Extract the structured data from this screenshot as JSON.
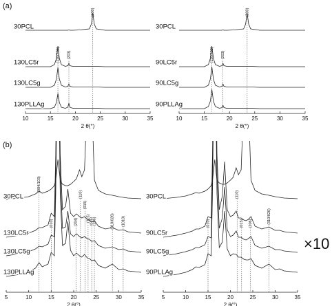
{
  "panel_labels": [
    "(a)",
    "(b)"
  ],
  "magnification": "×10",
  "chart_data": [
    {
      "type": "line",
      "xlabel": "2 θ(°)",
      "xlim": [
        10,
        35
      ],
      "xticks": [
        10,
        15,
        20,
        25,
        30,
        35
      ],
      "x": [
        10,
        13,
        15,
        15.8,
        16.2,
        16.5,
        16.8,
        17.2,
        18,
        18.5,
        18.7,
        18.9,
        19.5,
        21,
        22.8,
        23.2,
        23.5,
        23.8,
        24.2,
        26,
        30,
        35
      ],
      "series": [
        {
          "name": "30PCL",
          "color": "#222222",
          "values": [
            1,
            1,
            1,
            1,
            1,
            1,
            1,
            1,
            1,
            1,
            1.5,
            1,
            1,
            1.5,
            3,
            10,
            26,
            10,
            3,
            1,
            1,
            1
          ]
        },
        {
          "name": "130LC5r",
          "color": "#222222",
          "values": [
            0,
            0,
            0,
            3,
            12,
            30,
            12,
            3,
            0.5,
            1.5,
            5,
            1.5,
            0.5,
            0.5,
            0.5,
            0.5,
            0.5,
            0.5,
            0.5,
            0,
            0,
            0
          ]
        },
        {
          "name": "130LC5g",
          "color": "#222222",
          "values": [
            0,
            0,
            0,
            3,
            12,
            29,
            12,
            3,
            0.5,
            1.5,
            5,
            1.5,
            0.5,
            0.5,
            0.5,
            0.5,
            0.5,
            0.5,
            0.5,
            0,
            0,
            0
          ]
        },
        {
          "name": "130PLLAg",
          "color": "#222222",
          "values": [
            0,
            0,
            0,
            2,
            9,
            22,
            9,
            2,
            0.5,
            2,
            8,
            2,
            0.5,
            0.5,
            0.5,
            0.5,
            0.5,
            0.5,
            0.5,
            0,
            0,
            0
          ]
        }
      ],
      "annotations": [
        {
          "text": "(200)",
          "x": 23.5
        },
        {
          "text": "(110/200)",
          "x": 16.5
        },
        {
          "text": "(203)",
          "x": 18.7
        }
      ]
    },
    {
      "type": "line",
      "xlabel": "2 θ(°)",
      "xlim": [
        10,
        35
      ],
      "xticks": [
        10,
        15,
        20,
        25,
        30,
        35
      ],
      "x": [
        10,
        13,
        15,
        15.8,
        16.2,
        16.5,
        16.8,
        17.2,
        18,
        18.5,
        18.7,
        18.9,
        19.5,
        21,
        22.8,
        23.2,
        23.5,
        23.8,
        24.2,
        26,
        30,
        35
      ],
      "series": [
        {
          "name": "30PCL",
          "color": "#222222",
          "values": [
            1,
            1,
            1,
            1,
            1,
            1,
            1,
            1,
            1,
            1,
            1.5,
            1,
            1,
            1.5,
            3,
            10,
            26,
            10,
            3,
            1,
            1,
            1
          ]
        },
        {
          "name": "90LC5r",
          "color": "#222222",
          "values": [
            0,
            0,
            0,
            3,
            12,
            30,
            12,
            3,
            0.5,
            1.5,
            5,
            1.5,
            0.5,
            0.5,
            0.5,
            0.5,
            0.5,
            0.5,
            0.5,
            0,
            0,
            0
          ]
        },
        {
          "name": "90LC5g",
          "color": "#222222",
          "values": [
            0,
            0,
            0,
            3,
            12,
            30,
            12,
            3,
            0.5,
            1.5,
            5,
            1.5,
            0.5,
            0.5,
            0.5,
            0.5,
            0.5,
            0.5,
            0.5,
            0,
            0,
            0
          ]
        },
        {
          "name": "90PLLAg",
          "color": "#222222",
          "values": [
            0,
            0,
            0,
            3,
            11,
            28,
            11,
            3,
            0.5,
            1.5,
            5,
            1.5,
            0.5,
            0.5,
            0.5,
            0.5,
            0.5,
            0.5,
            0.5,
            0,
            0,
            0
          ]
        }
      ],
      "annotations": [
        {
          "text": "(200)",
          "x": 23.5
        },
        {
          "text": "(110/200)",
          "x": 16.5
        },
        {
          "text": "(203)",
          "x": 18.7
        }
      ]
    },
    {
      "type": "line",
      "xlabel": "2 θ(°)",
      "xlim": [
        5,
        35
      ],
      "xticks": [
        5,
        10,
        15,
        20,
        25,
        30,
        35
      ],
      "x": [
        5,
        8,
        10,
        11.5,
        12.3,
        13,
        14.3,
        15,
        15.7,
        16,
        16.5,
        17,
        17.5,
        18.2,
        18.7,
        19.3,
        20,
        20.6,
        21.3,
        21.8,
        22.4,
        23,
        23.5,
        24,
        24.6,
        25.5,
        27,
        28.6,
        30,
        31,
        32,
        35
      ],
      "series": [
        {
          "name": "30PCL",
          "color": "#222222",
          "values": [
            2,
            4,
            6,
            10,
            14,
            11,
            14,
            17,
            22,
            30,
            60,
            30,
            24,
            22,
            22,
            24,
            28,
            32,
            45,
            35,
            45,
            150,
            300,
            150,
            30,
            15,
            10,
            8,
            6,
            5,
            4,
            3
          ]
        },
        {
          "name": "130LC5r",
          "color": "#222222",
          "values": [
            0,
            3,
            6,
            10,
            14,
            14,
            18,
            35,
            30,
            120,
            400,
            120,
            40,
            45,
            70,
            35,
            30,
            34,
            30,
            28,
            30,
            26,
            25,
            22,
            24,
            16,
            12,
            14,
            10,
            11,
            8,
            6
          ]
        },
        {
          "name": "130LC5g",
          "color": "#222222",
          "values": [
            0,
            3,
            6,
            10,
            14,
            13,
            17,
            30,
            28,
            120,
            400,
            120,
            40,
            42,
            65,
            32,
            28,
            32,
            28,
            26,
            28,
            25,
            24,
            21,
            22,
            15,
            11,
            13,
            9,
            10,
            7,
            5
          ]
        },
        {
          "name": "130PLLAg",
          "color": "#222222",
          "values": [
            0,
            3,
            7,
            12,
            20,
            14,
            18,
            35,
            30,
            120,
            400,
            120,
            45,
            48,
            80,
            38,
            30,
            34,
            30,
            28,
            32,
            27,
            26,
            23,
            24,
            16,
            12,
            18,
            10,
            11,
            8,
            6
          ]
        }
      ],
      "annotations": [
        {
          "text": "(004/103)",
          "x": 12.3
        },
        {
          "text": "(010)",
          "x": 15
        },
        {
          "text": "(110)",
          "x": 21.5
        },
        {
          "text": "(204)",
          "x": 20.5
        },
        {
          "text": "(015)",
          "x": 22.5
        },
        {
          "text": "(115)",
          "x": 23.2
        },
        {
          "text": "(016)",
          "x": 24
        },
        {
          "text": "(206)",
          "x": 24.6
        },
        {
          "text": "(310/026)",
          "x": 28.6
        },
        {
          "text": "(1010)",
          "x": 31
        }
      ]
    },
    {
      "type": "line",
      "xlabel": "2 θ(°)",
      "xlim": [
        5,
        35
      ],
      "xticks": [
        5,
        10,
        15,
        20,
        25,
        30,
        35
      ],
      "x": [
        5,
        8,
        10,
        11.5,
        12.3,
        13,
        14.3,
        15,
        15.7,
        16,
        16.5,
        17,
        17.5,
        18.2,
        18.7,
        19.3,
        20,
        20.6,
        21.3,
        21.8,
        22.4,
        23,
        23.5,
        24,
        24.6,
        25.5,
        27,
        28.6,
        30,
        31,
        32,
        35
      ],
      "series": [
        {
          "name": "30PCL",
          "color": "#222222",
          "values": [
            3,
            5,
            7,
            10,
            12,
            11,
            14,
            17,
            22,
            30,
            60,
            30,
            26,
            24,
            24,
            26,
            30,
            34,
            48,
            38,
            45,
            150,
            300,
            150,
            30,
            15,
            10,
            8,
            6,
            5,
            4,
            3
          ]
        },
        {
          "name": "90LC5r",
          "color": "#222222",
          "values": [
            0,
            3,
            6,
            9,
            12,
            12,
            16,
            30,
            28,
            120,
            400,
            120,
            40,
            60,
            110,
            40,
            30,
            32,
            38,
            28,
            28,
            25,
            24,
            26,
            30,
            16,
            12,
            15,
            10,
            10,
            8,
            6
          ]
        },
        {
          "name": "90LC5g",
          "color": "#222222",
          "values": [
            0,
            3,
            6,
            9,
            12,
            12,
            16,
            28,
            26,
            120,
            400,
            120,
            40,
            55,
            100,
            38,
            28,
            30,
            36,
            27,
            27,
            24,
            23,
            25,
            28,
            15,
            11,
            14,
            9,
            9,
            7,
            5
          ]
        },
        {
          "name": "90PLLAg",
          "color": "#222222",
          "values": [
            0,
            3,
            6,
            10,
            14,
            13,
            17,
            33,
            30,
            120,
            400,
            120,
            42,
            50,
            95,
            40,
            30,
            33,
            32,
            28,
            28,
            25,
            24,
            24,
            26,
            16,
            12,
            18,
            10,
            11,
            8,
            6
          ]
        }
      ],
      "annotations": [
        {
          "text": "(010)",
          "x": 15
        },
        {
          "text": "(110)",
          "x": 21.5
        },
        {
          "text": "(015)",
          "x": 22.5
        },
        {
          "text": "(206)",
          "x": 24.5
        },
        {
          "text": "(310/026)",
          "x": 28.6
        }
      ]
    }
  ]
}
